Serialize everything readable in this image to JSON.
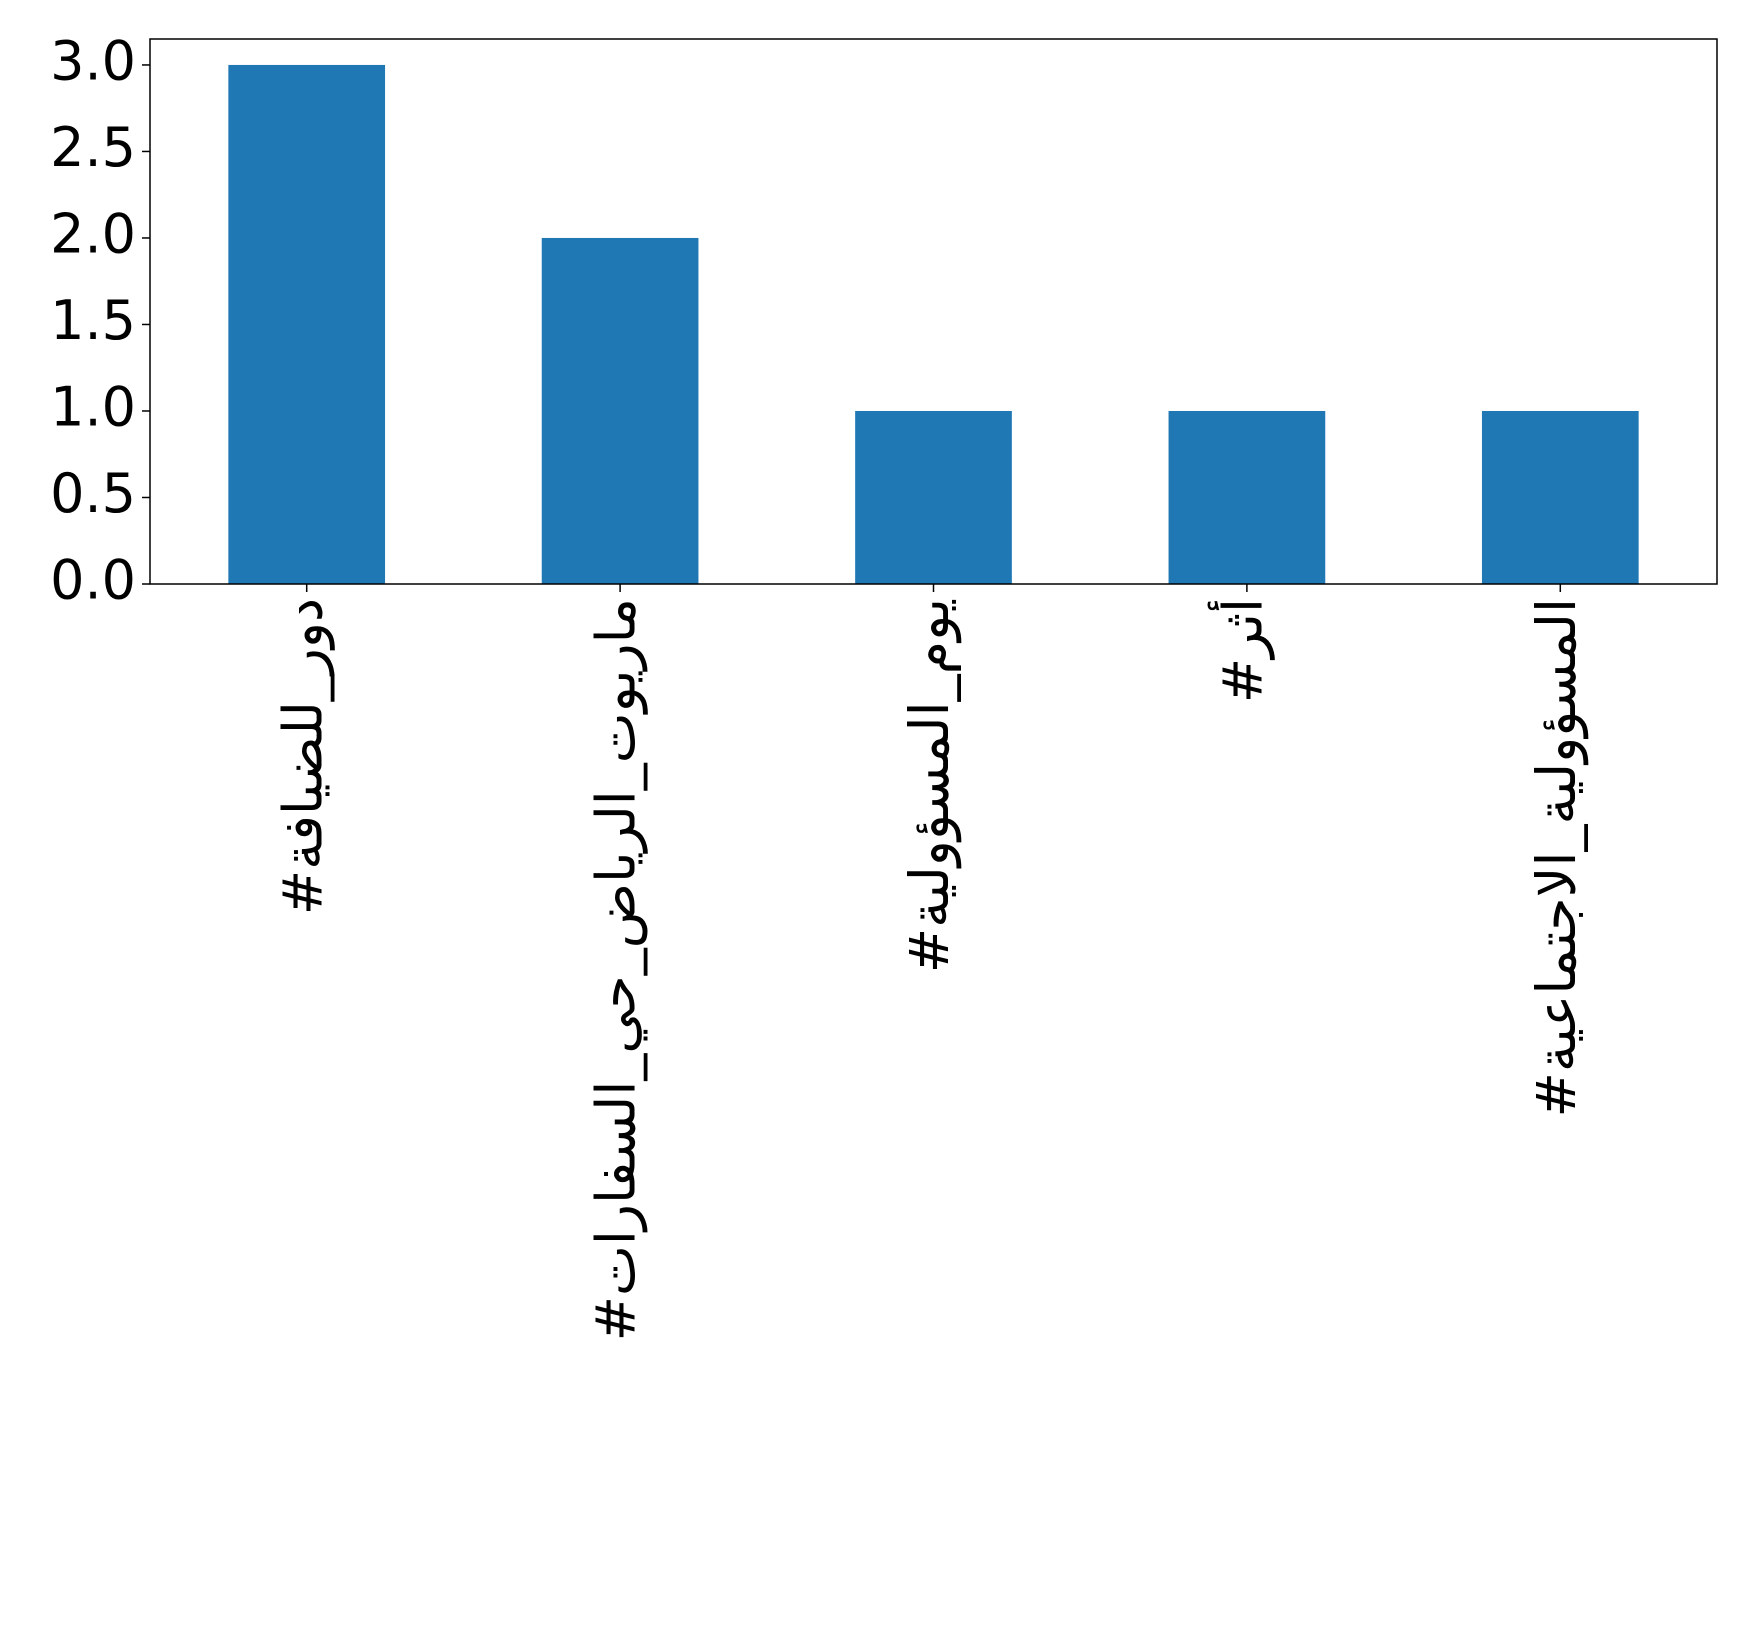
{
  "chart_data": {
    "type": "bar",
    "categories": [
      "#دور_للضيافة",
      "#ماريوت_الرياض_حي_السفارات",
      "#يوم_المسؤولية",
      "#أثر",
      "#المسؤولية_الاجتماعية"
    ],
    "values": [
      3,
      2,
      1,
      1,
      1
    ],
    "color": "#1f77b4",
    "ylim": [
      0,
      3.15
    ],
    "yticks": [
      {
        "value": 0,
        "label": "0.0"
      },
      0.5,
      {
        "value": 1,
        "label": "1.0"
      },
      1.5,
      {
        "value": 2,
        "label": "2.0"
      },
      2.5,
      {
        "value": 3,
        "label": "3.0"
      }
    ],
    "grid": false
  }
}
